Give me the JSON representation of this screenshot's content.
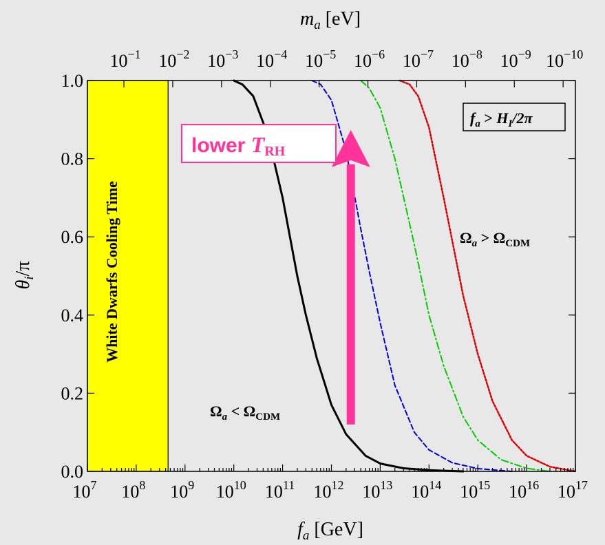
{
  "chart_data": {
    "type": "line",
    "xlabel": "f_a [GeV]",
    "xlabel_parts": {
      "main": "f",
      "sub": "a",
      "rest": " [GeV]"
    },
    "x2label": "m_a [eV]",
    "x2label_parts": {
      "main": "m",
      "sub": "a",
      "rest": " [eV]"
    },
    "ylabel": "θ_i/π",
    "ylabel_parts": {
      "main": "θ",
      "sub": "i",
      "rest": "/π"
    },
    "x_scale": "log",
    "xlim": [
      10000000,
      100000000000000000
    ],
    "ylim": [
      0,
      1
    ],
    "x_ticks": [
      {
        "base": "10",
        "exp": "7",
        "value": 10000000
      },
      {
        "base": "10",
        "exp": "8",
        "value": 100000000
      },
      {
        "base": "10",
        "exp": "9",
        "value": 1000000000
      },
      {
        "base": "10",
        "exp": "10",
        "value": 10000000000
      },
      {
        "base": "10",
        "exp": "11",
        "value": 100000000000
      },
      {
        "base": "10",
        "exp": "12",
        "value": 1000000000000
      },
      {
        "base": "10",
        "exp": "13",
        "value": 10000000000000
      },
      {
        "base": "10",
        "exp": "14",
        "value": 100000000000000
      },
      {
        "base": "10",
        "exp": "15",
        "value": 1000000000000000
      },
      {
        "base": "10",
        "exp": "16",
        "value": 10000000000000000
      },
      {
        "base": "10",
        "exp": "17",
        "value": 100000000000000000
      }
    ],
    "x2_ticks": [
      {
        "base": "10",
        "exp": "−1",
        "fa": 56000000
      },
      {
        "base": "10",
        "exp": "−2",
        "fa": 560000000
      },
      {
        "base": "10",
        "exp": "−3",
        "fa": 5600000000
      },
      {
        "base": "10",
        "exp": "−4",
        "fa": 56000000000
      },
      {
        "base": "10",
        "exp": "−5",
        "fa": 560000000000
      },
      {
        "base": "10",
        "exp": "−6",
        "fa": 5600000000000
      },
      {
        "base": "10",
        "exp": "−7",
        "fa": 56000000000000
      },
      {
        "base": "10",
        "exp": "−8",
        "fa": 560000000000000
      },
      {
        "base": "10",
        "exp": "−9",
        "fa": 5600000000000000
      },
      {
        "base": "10",
        "exp": "−10",
        "fa": 56000000000000000
      }
    ],
    "y_ticks": [
      {
        "label": "0.0",
        "value": 0
      },
      {
        "label": "0.2",
        "value": 0.2
      },
      {
        "label": "0.4",
        "value": 0.4
      },
      {
        "label": "0.6",
        "value": 0.6
      },
      {
        "label": "0.8",
        "value": 0.8
      },
      {
        "label": "1.0",
        "value": 1.0
      }
    ],
    "excluded_region": {
      "label": "White Dwarfs Cooling Time",
      "x_range": [
        10000000,
        450000000
      ],
      "color": "#ffff00"
    },
    "series": [
      {
        "style": "solid",
        "color": "#000000",
        "width": 3,
        "x": [
          10000000000,
          15000000000,
          25000000000,
          50000000000,
          100000000000,
          200000000000,
          300000000000,
          500000000000,
          1000000000000,
          2000000000000,
          5000000000000,
          10000000000000,
          30000000000000,
          100000000000000,
          500000000000000
        ],
        "y": [
          1.0,
          0.99,
          0.96,
          0.86,
          0.7,
          0.5,
          0.4,
          0.29,
          0.17,
          0.095,
          0.04,
          0.02,
          0.008,
          0.003,
          0.0
        ]
      },
      {
        "style": "dashed",
        "color": "#0000dd",
        "width": 2,
        "x": [
          400000000000,
          600000000000,
          1000000000000,
          2000000000000,
          4000000000000,
          6000000000000,
          10000000000000,
          20000000000000,
          50000000000000,
          100000000000000,
          300000000000000,
          1000000000000000,
          5000000000000000
        ],
        "y": [
          1.0,
          0.99,
          0.95,
          0.82,
          0.62,
          0.51,
          0.38,
          0.22,
          0.1,
          0.055,
          0.022,
          0.007,
          0.0
        ]
      },
      {
        "style": "dashdot",
        "color": "#00cc00",
        "width": 2,
        "x": [
          4000000000000,
          6000000000000,
          10000000000000,
          20000000000000,
          50000000000000,
          100000000000000,
          200000000000000,
          500000000000000,
          1000000000000000,
          3000000000000000,
          10000000000000000,
          30000000000000000
        ],
        "y": [
          1.0,
          0.98,
          0.93,
          0.8,
          0.58,
          0.4,
          0.27,
          0.14,
          0.08,
          0.03,
          0.008,
          0.0
        ]
      },
      {
        "style": "dotted",
        "color": "#dd0000",
        "width": 2.5,
        "x": [
          25000000000000,
          40000000000000,
          60000000000000,
          100000000000000,
          200000000000000,
          500000000000000,
          1000000000000000,
          2000000000000000,
          5000000000000000,
          10000000000000000,
          30000000000000000,
          100000000000000000
        ],
        "y": [
          1.0,
          0.99,
          0.96,
          0.88,
          0.7,
          0.45,
          0.3,
          0.18,
          0.08,
          0.04,
          0.012,
          0.0
        ]
      }
    ],
    "annotations": {
      "condition_box": "f_a > H_I/2π",
      "condition_parts": {
        "a": "f",
        "a_sub": "a",
        "mid": " > ",
        "b": "H",
        "b_sub": "I",
        "rest": "/2π"
      },
      "upper_region": "Ω_a > Ω_CDM",
      "upper_parts": {
        "sym": "Ω",
        "sub1": "a",
        "op": " > ",
        "sym2": "Ω",
        "sub2": "CDM"
      },
      "lower_region": "Ω_a < Ω_CDM",
      "lower_parts": {
        "sym": "Ω",
        "sub1": "a",
        "op": " < ",
        "sym2": "Ω",
        "sub2": "CDM"
      },
      "arrow_label": "lower T_RH",
      "arrow_parts": {
        "word": "lower ",
        "sym": "T",
        "sub": "RH"
      },
      "arrow_color": "#ff3399",
      "arrow_x": 2500000000000,
      "arrow_y_range": [
        0.12,
        0.87
      ]
    }
  }
}
